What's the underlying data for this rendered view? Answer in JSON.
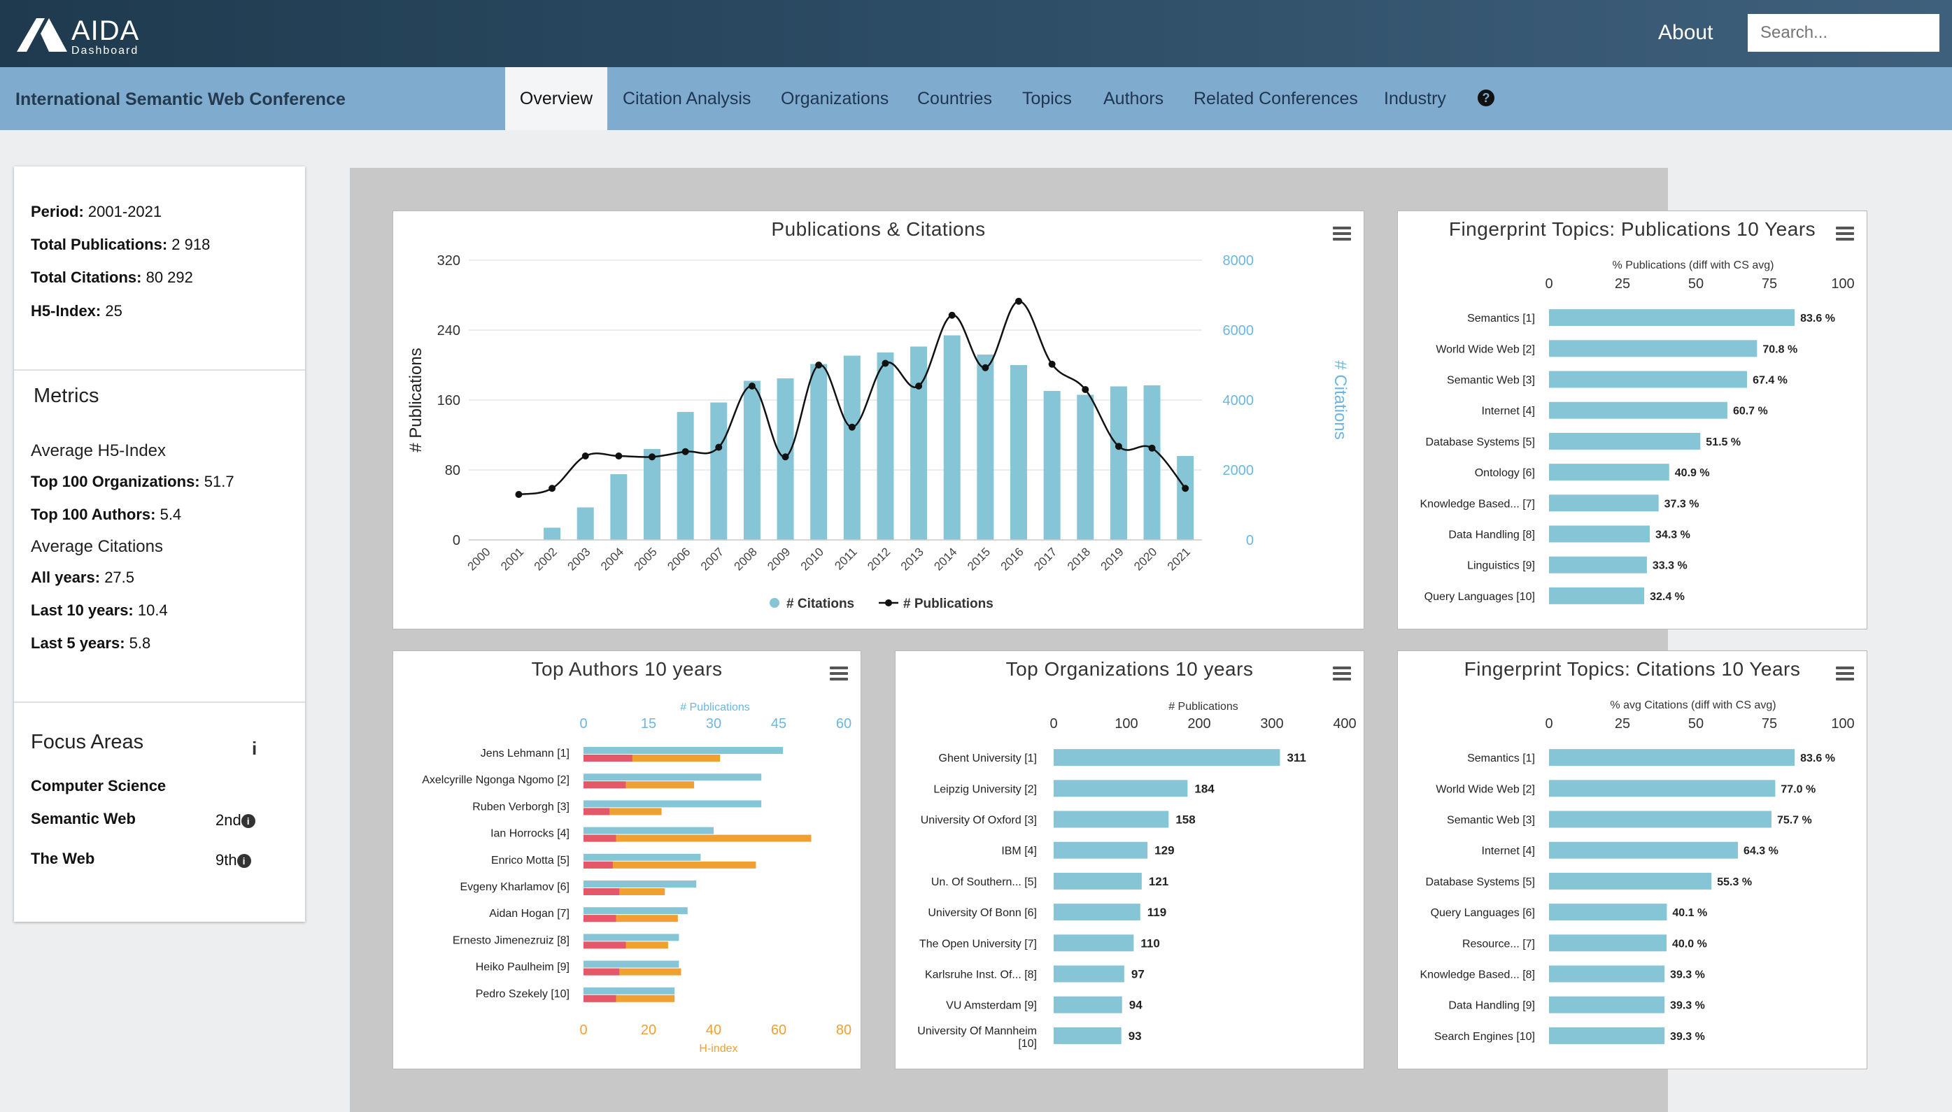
{
  "header": {
    "logo_word": "AIDA",
    "logo_sub": "Dashboard",
    "about_label": "About",
    "search_placeholder": "Search..."
  },
  "nav": {
    "conference_title": "International Semantic Web Conference",
    "tabs": [
      {
        "label": "Overview",
        "active": true
      },
      {
        "label": "Citation Analysis"
      },
      {
        "label": "Organizations"
      },
      {
        "label": "Countries"
      },
      {
        "label": "Topics"
      },
      {
        "label": "Authors"
      },
      {
        "label": "Related Conferences"
      },
      {
        "label": "Industry"
      }
    ],
    "help_icon": "question-circle-icon"
  },
  "sidebar": {
    "stats": [
      {
        "label": "Period:",
        "value": "2001-2021"
      },
      {
        "label": "Total Publications:",
        "value": "2 918"
      },
      {
        "label": "Total Citations:",
        "value": "80 292"
      },
      {
        "label": "H5-Index:",
        "value": "25"
      }
    ],
    "metrics_title": "Metrics",
    "avg_h5_title": "Average H5-Index",
    "h5_items": [
      {
        "label": "Top 100 Organizations:",
        "value": "51.7"
      },
      {
        "label": "Top 100 Authors:",
        "value": "5.4"
      }
    ],
    "avg_cit_title": "Average Citations",
    "cit_items": [
      {
        "label": "All years:",
        "value": "27.5"
      },
      {
        "label": "Last 10 years:",
        "value": "10.4"
      },
      {
        "label": "Last 5 years:",
        "value": "5.8"
      }
    ],
    "focus_title": "Focus Areas",
    "focus_items": [
      {
        "label": "Computer Science",
        "rank": ""
      },
      {
        "label": "Semantic Web",
        "rank": "2nd"
      },
      {
        "label": "The Web",
        "rank": "9th"
      }
    ]
  },
  "chart_data": [
    {
      "type": "bar+line",
      "title": "Publications & Citations",
      "categories": [
        "2000",
        "2001",
        "2002",
        "2003",
        "2004",
        "2005",
        "2006",
        "2007",
        "2008",
        "2009",
        "2010",
        "2011",
        "2012",
        "2013",
        "2014",
        "2015",
        "2016",
        "2017",
        "2018",
        "2019",
        "2020",
        "2021"
      ],
      "series": [
        {
          "name": "# Citations",
          "type": "bar",
          "axis": "right",
          "color": "#86c5d6",
          "values": [
            0,
            0,
            350,
            930,
            1880,
            2600,
            3660,
            3930,
            4550,
            4620,
            5030,
            5270,
            5360,
            5530,
            5850,
            5300,
            5000,
            4260,
            4150,
            4390,
            4420,
            2400
          ]
        },
        {
          "name": "# Publications",
          "type": "line",
          "axis": "left",
          "color": "#111111",
          "values": [
            null,
            52,
            59,
            96,
            96,
            95,
            101,
            106,
            176,
            95,
            200,
            129,
            202,
            176,
            257,
            197,
            273,
            201,
            172,
            107,
            105,
            59
          ]
        }
      ],
      "ylabel_left": "# Publications",
      "ylabel_right": "# Citations",
      "yticks_left": [
        "0",
        "80",
        "160",
        "240",
        "320"
      ],
      "yticks_right": [
        "0",
        "2000",
        "4000",
        "6000",
        "8000"
      ],
      "ylim_left": [
        0,
        320
      ],
      "ylim_right": [
        0,
        8000
      ]
    },
    {
      "type": "bar",
      "orientation": "horizontal",
      "title": "Fingerprint Topics: Publications 10 Years",
      "xlabel": "% Publications (diff with CS avg)",
      "xticks": [
        "0",
        "25",
        "50",
        "75",
        "100"
      ],
      "xlim": [
        0,
        100
      ],
      "categories": [
        "Semantics [1]",
        "World Wide Web [2]",
        "Semantic Web [3]",
        "Internet [4]",
        "Database Systems [5]",
        "Ontology [6]",
        "Knowledge Based... [7]",
        "Data Handling [8]",
        "Linguistics [9]",
        "Query Languages [10]"
      ],
      "values": [
        83.6,
        70.8,
        67.4,
        60.7,
        51.5,
        40.9,
        37.3,
        34.3,
        33.3,
        32.4
      ],
      "labels": [
        "83.6 %",
        "70.8 %",
        "67.4 %",
        "60.7 %",
        "51.5 %",
        "40.9 %",
        "37.3 %",
        "34.3 %",
        "33.3 %",
        "32.4 %"
      ]
    },
    {
      "type": "bar",
      "orientation": "horizontal",
      "title": "Top Authors 10 years",
      "top_axis_label": "# Publications",
      "top_ticks": [
        "0",
        "15",
        "30",
        "45",
        "60"
      ],
      "top_lim": [
        0,
        60
      ],
      "bottom_axis_label": "H-index",
      "bottom_ticks": [
        "0",
        "20",
        "40",
        "60",
        "80"
      ],
      "bottom_lim": [
        0,
        80
      ],
      "categories": [
        "Jens Lehmann [1]",
        "Axelcyrille Ngonga Ngomo [2]",
        "Ruben Verborgh [3]",
        "Ian Horrocks [4]",
        "Enrico Motta [5]",
        "Evgeny Kharlamov [6]",
        "Aidan Hogan [7]",
        "Ernesto Jimenezruiz [8]",
        "Heiko Paulheim [9]",
        "Pedro Szekely [10]"
      ],
      "series": [
        {
          "name": "# Publications",
          "color": "#86c5d6",
          "values": [
            46,
            41,
            41,
            30,
            27,
            26,
            24,
            22,
            22,
            21
          ]
        },
        {
          "name": "H-index",
          "color": "#f0a030",
          "values": [
            42,
            34,
            24,
            70,
            53,
            25,
            29,
            26,
            30,
            28
          ]
        },
        {
          "name": "",
          "color": "#e4586a",
          "values": [
            15,
            13,
            8,
            10,
            9,
            11,
            10,
            13,
            11,
            10
          ]
        }
      ]
    },
    {
      "type": "bar",
      "orientation": "horizontal",
      "title": "Top Organizations 10 years",
      "xlabel": "# Publications",
      "xticks": [
        "0",
        "100",
        "200",
        "300",
        "400"
      ],
      "xlim": [
        0,
        400
      ],
      "categories": [
        "Ghent University [1]",
        "Leipzig University [2]",
        "University Of Oxford [3]",
        "IBM [4]",
        "Un. Of Southern... [5]",
        "University Of Bonn [6]",
        "The Open University [7]",
        "Karlsruhe Inst. Of... [8]",
        "VU Amsterdam [9]",
        "University Of Mannheim [10]"
      ],
      "values": [
        311,
        184,
        158,
        129,
        121,
        119,
        110,
        97,
        94,
        93
      ]
    },
    {
      "type": "bar",
      "orientation": "horizontal",
      "title": "Fingerprint Topics: Citations 10 Years",
      "xlabel": "% avg Citations (diff with CS avg)",
      "xticks": [
        "0",
        "25",
        "50",
        "75",
        "100"
      ],
      "xlim": [
        0,
        100
      ],
      "categories": [
        "Semantics [1]",
        "World Wide Web [2]",
        "Semantic Web [3]",
        "Internet [4]",
        "Database Systems [5]",
        "Query Languages [6]",
        "Resource... [7]",
        "Knowledge Based... [8]",
        "Data Handling [9]",
        "Search Engines [10]"
      ],
      "values": [
        83.6,
        77.0,
        75.7,
        64.3,
        55.3,
        40.1,
        40.0,
        39.3,
        39.3,
        39.3
      ],
      "labels": [
        "83.6 %",
        "77.0 %",
        "75.7 %",
        "64.3 %",
        "55.3 %",
        "40.1 %",
        "40.0 %",
        "39.3 %",
        "39.3 %",
        "39.3 %"
      ]
    }
  ]
}
